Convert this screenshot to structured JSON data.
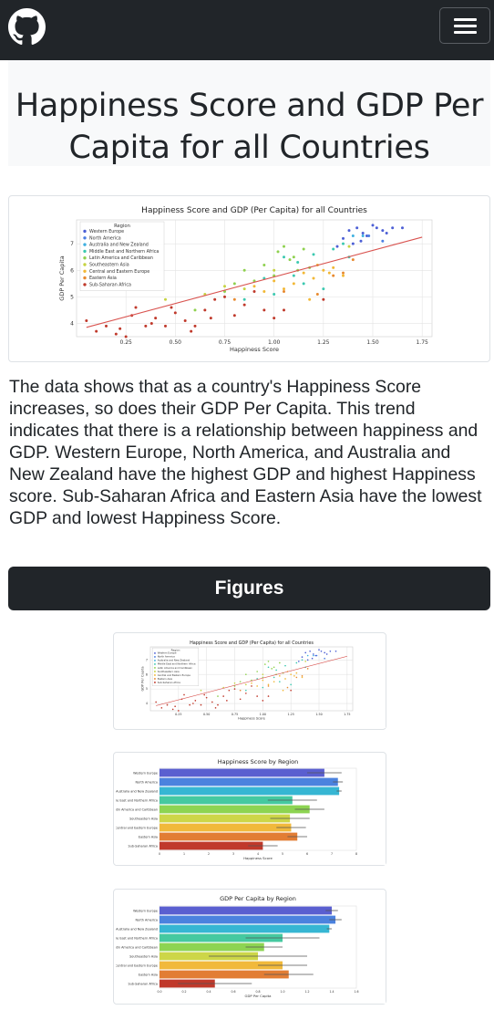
{
  "header": {
    "logo_icon": "github-icon",
    "menu_icon": "hamburger-icon"
  },
  "title": "Happiness Score and GDP Per Capita for all Countries",
  "description": "The data shows that as a country's Happiness Score increases, so does their GDP Per Capita. This trend indicates that there is a relationship between happiness and GDP. Western Europe, North America, and Australia and New Zealand have the highest GDP and highest Happiness score. Sub-Saharan Africa and Eastern Asia have the lowest GDP and lowest Happiness Score.",
  "figures_label": "Figures",
  "colors": {
    "navbar": "#212529",
    "regression_line": "#d9534f"
  },
  "chart_data": [
    {
      "type": "scatter",
      "title": "Happiness Score and GDP (Per Capita) for all Countries",
      "xlabel": "Happiness Score",
      "ylabel": "GDP Per Capita",
      "xlim": [
        0.0,
        1.8
      ],
      "ylim": [
        3.5,
        7.9
      ],
      "xticks": [
        "0.25",
        "0.50",
        "0.75",
        "1.00",
        "1.25",
        "1.50",
        "1.75"
      ],
      "yticks": [
        "4",
        "5",
        "6",
        "7"
      ],
      "grid": true,
      "legend_title": "Region",
      "legend_placement": "top-left",
      "regression": {
        "x": [
          0.05,
          1.75
        ],
        "y": [
          3.85,
          7.25
        ]
      },
      "series": [
        {
          "name": "Western Europe",
          "color": "#4c5fd5",
          "points": [
            [
              1.38,
              7.5
            ],
            [
              1.42,
              7.6
            ],
            [
              1.45,
              7.4
            ],
            [
              1.47,
              7.3
            ],
            [
              1.52,
              7.6
            ],
            [
              1.55,
              7.5
            ],
            [
              1.6,
              7.6
            ],
            [
              1.35,
              7.2
            ],
            [
              1.4,
              7.0
            ],
            [
              1.5,
              7.7
            ],
            [
              1.57,
              7.4
            ],
            [
              1.65,
              7.6
            ],
            [
              1.32,
              6.9
            ],
            [
              1.44,
              7.1
            ]
          ]
        },
        {
          "name": "North America",
          "color": "#4a7ee3",
          "points": [
            [
              1.48,
              7.3
            ],
            [
              1.55,
              7.1
            ]
          ]
        },
        {
          "name": "Australia and New Zealand",
          "color": "#3fb0e0",
          "points": [
            [
              1.45,
              7.3
            ],
            [
              1.4,
              7.3
            ]
          ]
        },
        {
          "name": "Middle East and Northern Africa",
          "color": "#3cc9b0",
          "points": [
            [
              0.95,
              5.7
            ],
            [
              1.05,
              6.5
            ],
            [
              1.12,
              6.3
            ],
            [
              1.2,
              6.6
            ],
            [
              1.3,
              6.8
            ],
            [
              1.25,
              5.3
            ],
            [
              1.1,
              5.8
            ],
            [
              1.35,
              7.0
            ],
            [
              0.85,
              4.9
            ],
            [
              1.0,
              5.1
            ],
            [
              1.38,
              6.5
            ],
            [
              1.15,
              5.5
            ]
          ]
        },
        {
          "name": "Latin America and Caribbean",
          "color": "#8fd14f",
          "points": [
            [
              0.75,
              5.2
            ],
            [
              0.85,
              6.0
            ],
            [
              0.95,
              6.2
            ],
            [
              1.0,
              5.8
            ],
            [
              1.05,
              6.9
            ],
            [
              1.08,
              6.4
            ],
            [
              1.12,
              6.0
            ],
            [
              0.9,
              5.6
            ],
            [
              1.15,
              6.8
            ],
            [
              1.18,
              6.1
            ],
            [
              0.6,
              4.5
            ],
            [
              1.02,
              6.7
            ],
            [
              0.8,
              5.5
            ],
            [
              1.1,
              6.5
            ]
          ]
        },
        {
          "name": "Southeastern Asia",
          "color": "#c6d341",
          "points": [
            [
              0.45,
              4.9
            ],
            [
              0.65,
              5.1
            ],
            [
              0.85,
              5.3
            ],
            [
              1.0,
              6.0
            ],
            [
              1.38,
              6.9
            ],
            [
              0.75,
              5.4
            ]
          ]
        },
        {
          "name": "Central and Eastern Europe",
          "color": "#f2b836",
          "points": [
            [
              0.9,
              5.4
            ],
            [
              1.0,
              5.6
            ],
            [
              1.05,
              5.3
            ],
            [
              1.15,
              5.9
            ],
            [
              1.2,
              5.7
            ],
            [
              1.25,
              6.0
            ],
            [
              1.28,
              5.9
            ],
            [
              1.3,
              6.1
            ],
            [
              1.1,
              5.5
            ],
            [
              0.95,
              5.2
            ],
            [
              1.22,
              6.2
            ],
            [
              1.18,
              4.9
            ],
            [
              1.35,
              5.8
            ]
          ]
        },
        {
          "name": "Eastern Asia",
          "color": "#e88a30",
          "points": [
            [
              0.8,
              4.9
            ],
            [
              1.22,
              5.1
            ],
            [
              1.3,
              5.8
            ],
            [
              1.35,
              5.9
            ],
            [
              1.4,
              6.4
            ],
            [
              1.05,
              5.2
            ]
          ]
        },
        {
          "name": "Sub-Saharan Africa",
          "color": "#c0392b",
          "points": [
            [
              0.05,
              4.1
            ],
            [
              0.1,
              3.7
            ],
            [
              0.15,
              3.9
            ],
            [
              0.2,
              3.6
            ],
            [
              0.25,
              3.5
            ],
            [
              0.28,
              4.3
            ],
            [
              0.3,
              4.6
            ],
            [
              0.35,
              3.9
            ],
            [
              0.4,
              4.2
            ],
            [
              0.45,
              3.9
            ],
            [
              0.5,
              4.4
            ],
            [
              0.55,
              4.1
            ],
            [
              0.6,
              3.9
            ],
            [
              0.65,
              4.5
            ],
            [
              0.7,
              4.9
            ],
            [
              0.75,
              5.0
            ],
            [
              0.8,
              4.3
            ],
            [
              0.85,
              4.7
            ],
            [
              0.9,
              5.2
            ],
            [
              0.95,
              4.5
            ],
            [
              1.0,
              4.2
            ],
            [
              0.38,
              4.0
            ],
            [
              0.22,
              3.8
            ],
            [
              0.48,
              4.6
            ],
            [
              0.58,
              3.7
            ],
            [
              0.68,
              4.2
            ],
            [
              1.05,
              4.5
            ],
            [
              1.25,
              4.9
            ]
          ]
        }
      ]
    },
    {
      "type": "bar",
      "orientation": "horizontal",
      "title": "Happiness Score by Region",
      "xlabel": "Happiness Score",
      "categories": [
        "Western Europe",
        "North America",
        "Australia and New Zealand",
        "Middle East and Northern Africa",
        "Latin America and Caribbean",
        "Southeastern Asia",
        "Central and Eastern Europe",
        "Eastern Asia",
        "Sub-Saharan Africa"
      ],
      "values": [
        6.7,
        7.25,
        7.3,
        5.4,
        6.1,
        5.3,
        5.35,
        5.6,
        4.2
      ],
      "errors": [
        0.7,
        0.2,
        0.1,
        1.0,
        0.6,
        0.8,
        0.6,
        0.4,
        0.6
      ],
      "xlim": [
        0,
        8
      ],
      "colors": [
        "#5a5fd0",
        "#4b82de",
        "#36b6d3",
        "#45c9a0",
        "#8dd452",
        "#cdd648",
        "#f1b93b",
        "#e27d34",
        "#c0392b"
      ]
    },
    {
      "type": "bar",
      "orientation": "horizontal",
      "title": "GDP Per Capita by Region",
      "xlabel": "GDP Per Capita",
      "categories": [
        "Western Europe",
        "North America",
        "Australia and New Zealand",
        "Middle East and Northern Africa",
        "Latin America and Caribbean",
        "Southeastern Asia",
        "Central and Eastern Europe",
        "Eastern Asia",
        "Sub-Saharan Africa"
      ],
      "values": [
        1.4,
        1.43,
        1.38,
        1.0,
        0.85,
        0.8,
        1.0,
        1.05,
        0.45
      ],
      "errors": [
        0.05,
        0.05,
        0.02,
        0.3,
        0.15,
        0.4,
        0.2,
        0.2,
        0.3
      ],
      "xlim": [
        0,
        1.6
      ],
      "colors": [
        "#5a5fd0",
        "#4b82de",
        "#36b6d3",
        "#45c9a0",
        "#8dd452",
        "#cdd648",
        "#f1b93b",
        "#e27d34",
        "#c0392b"
      ]
    }
  ]
}
